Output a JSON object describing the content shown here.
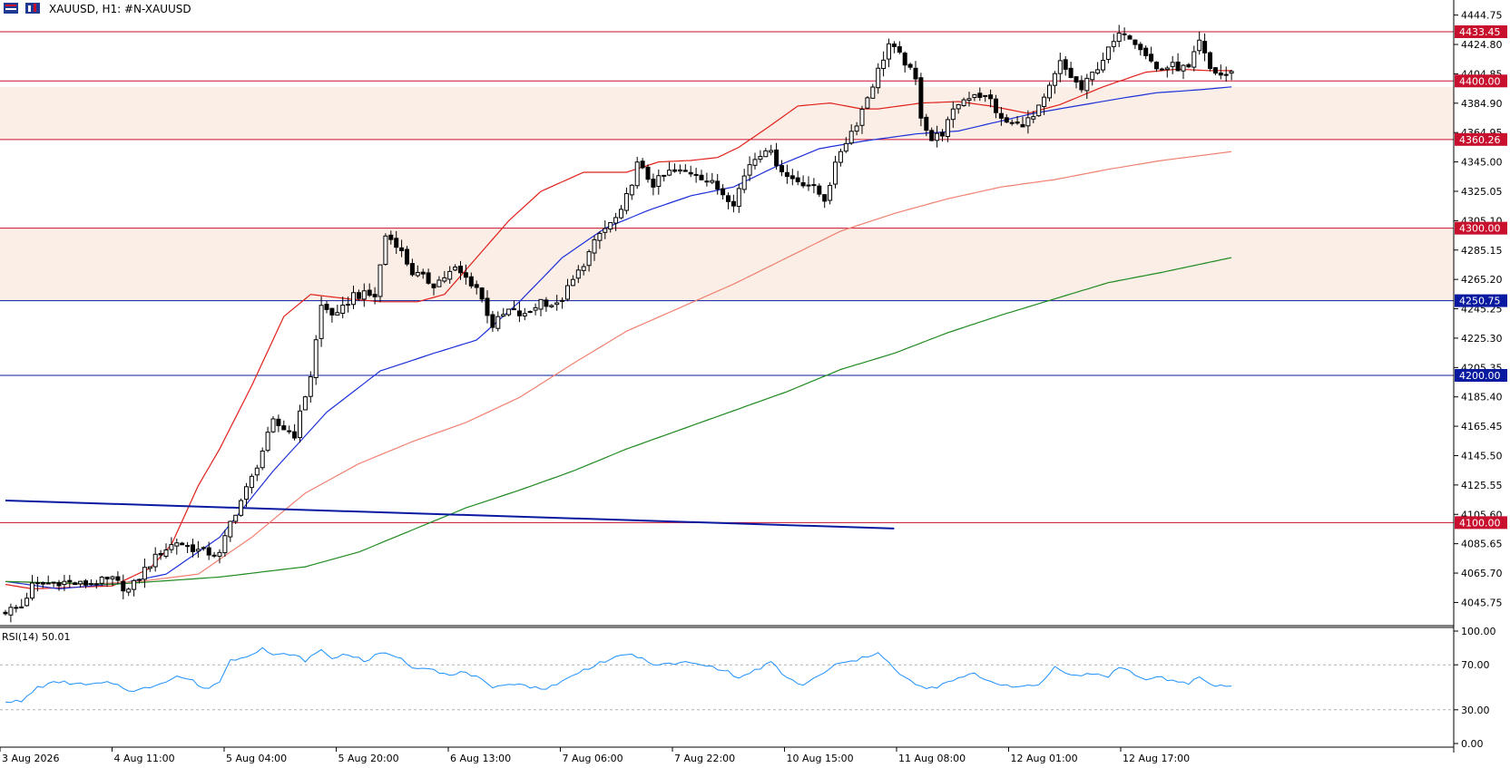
{
  "header": {
    "symbol_line": "XAUUSD, H1:  #N-XAUUSD"
  },
  "rsi_label": "RSI(14) 50.01",
  "chart_data": [
    {
      "type": "candlestick",
      "symbol": "XAUUSD",
      "timeframe": "H1",
      "ylim": [
        4030,
        4455
      ],
      "price_ticks": [
        "4444.75",
        "4424.80",
        "4404.85",
        "4384.90",
        "4364.95",
        "4345.00",
        "4325.05",
        "4305.10",
        "4285.15",
        "4265.20",
        "4245.25",
        "4225.30",
        "4205.35",
        "4185.40",
        "4165.45",
        "4145.50",
        "4125.55",
        "4105.60",
        "4085.65",
        "4065.70",
        "4045.75"
      ],
      "time_labels": [
        "3 Aug 2026",
        "4 Aug 11:00",
        "5 Aug 04:00",
        "5 Aug 20:00",
        "6 Aug 13:00",
        "7 Aug 06:00",
        "7 Aug 22:00",
        "10 Aug 15:00",
        "11 Aug 08:00",
        "12 Aug 01:00",
        "12 Aug 17:00"
      ],
      "levels": [
        {
          "label": "4433.45",
          "value": 4433.45,
          "color": "#c8102e"
        },
        {
          "label": "4400.00",
          "value": 4400.0,
          "color": "#c8102e"
        },
        {
          "label": "4360.26",
          "value": 4360.26,
          "color": "#c8102e"
        },
        {
          "label": "4300.00",
          "value": 4300.0,
          "color": "#c8102e"
        },
        {
          "label": "4250.75",
          "value": 4250.75,
          "color": "#0a1aa0"
        },
        {
          "label": "4200.00",
          "value": 4200.0,
          "color": "#0a1aa0"
        },
        {
          "label": "4100.00",
          "value": 4100.0,
          "color": "#c8102e"
        }
      ],
      "zones": [
        {
          "from": 4360.26,
          "to": 4396,
          "color": "#fbeee6"
        },
        {
          "from": 4250.75,
          "to": 4300.0,
          "color": "#fbeee6"
        }
      ],
      "trendline": {
        "from_bar": 0,
        "from_price": 4115,
        "to_bar": 166,
        "to_price": 4096,
        "color": "#0a1aa0"
      },
      "moving_averages": [
        {
          "color": "#e0201a",
          "anchors": [
            [
              0,
              4058
            ],
            [
              5,
              4055
            ],
            [
              20,
              4057
            ],
            [
              27,
              4069
            ],
            [
              31,
              4085
            ],
            [
              36,
              4125
            ],
            [
              40,
              4150
            ],
            [
              46,
              4193
            ],
            [
              52,
              4240
            ],
            [
              57,
              4255
            ],
            [
              64,
              4252
            ],
            [
              70,
              4250
            ],
            [
              77,
              4250
            ],
            [
              82,
              4255
            ],
            [
              88,
              4280
            ],
            [
              94,
              4305
            ],
            [
              100,
              4325
            ],
            [
              108,
              4338
            ],
            [
              116,
              4338
            ],
            [
              122,
              4345
            ],
            [
              128,
              4346
            ],
            [
              133,
              4348
            ],
            [
              137,
              4355
            ],
            [
              143,
              4370
            ],
            [
              148,
              4383
            ],
            [
              154,
              4385
            ],
            [
              160,
              4381
            ],
            [
              163,
              4381
            ],
            [
              171,
              4385
            ],
            [
              178,
              4386
            ],
            [
              184,
              4383
            ],
            [
              191,
              4378
            ],
            [
              197,
              4384
            ],
            [
              205,
              4396
            ],
            [
              213,
              4406
            ],
            [
              219,
              4408
            ],
            [
              225,
              4407
            ],
            [
              229,
              4407
            ]
          ]
        },
        {
          "color": "#1c2fd8",
          "anchors": [
            [
              0,
              4060
            ],
            [
              10,
              4055
            ],
            [
              22,
              4059
            ],
            [
              30,
              4065
            ],
            [
              40,
              4090
            ],
            [
              50,
              4135
            ],
            [
              60,
              4175
            ],
            [
              70,
              4203
            ],
            [
              80,
              4215
            ],
            [
              88,
              4224
            ],
            [
              96,
              4250
            ],
            [
              104,
              4280
            ],
            [
              112,
              4300
            ],
            [
              120,
              4312
            ],
            [
              128,
              4322
            ],
            [
              136,
              4328
            ],
            [
              144,
              4342
            ],
            [
              152,
              4354
            ],
            [
              160,
              4359
            ],
            [
              170,
              4364
            ],
            [
              178,
              4366
            ],
            [
              185,
              4372
            ],
            [
              192,
              4378
            ],
            [
              200,
              4383
            ],
            [
              208,
              4388
            ],
            [
              215,
              4392
            ],
            [
              223,
              4394
            ],
            [
              229,
              4396
            ]
          ]
        },
        {
          "color": "#f08070",
          "anchors": [
            [
              0,
              4060
            ],
            [
              15,
              4058
            ],
            [
              25,
              4060
            ],
            [
              36,
              4065
            ],
            [
              46,
              4090
            ],
            [
              56,
              4120
            ],
            [
              66,
              4140
            ],
            [
              76,
              4155
            ],
            [
              86,
              4168
            ],
            [
              96,
              4185
            ],
            [
              106,
              4208
            ],
            [
              116,
              4230
            ],
            [
              126,
              4246
            ],
            [
              136,
              4262
            ],
            [
              146,
              4280
            ],
            [
              156,
              4298
            ],
            [
              166,
              4310
            ],
            [
              176,
              4320
            ],
            [
              186,
              4328
            ],
            [
              196,
              4333
            ],
            [
              206,
              4340
            ],
            [
              216,
              4346
            ],
            [
              229,
              4352
            ]
          ]
        },
        {
          "color": "#1f8a1f",
          "anchors": [
            [
              0,
              4060
            ],
            [
              20,
              4058
            ],
            [
              40,
              4063
            ],
            [
              56,
              4070
            ],
            [
              66,
              4080
            ],
            [
              76,
              4095
            ],
            [
              86,
              4110
            ],
            [
              96,
              4122
            ],
            [
              106,
              4135
            ],
            [
              116,
              4150
            ],
            [
              126,
              4163
            ],
            [
              136,
              4176
            ],
            [
              146,
              4189
            ],
            [
              156,
              4204
            ],
            [
              166,
              4215
            ],
            [
              176,
              4229
            ],
            [
              186,
              4241
            ],
            [
              196,
              4252
            ],
            [
              206,
              4263
            ],
            [
              216,
              4270
            ],
            [
              229,
              4280
            ]
          ]
        }
      ],
      "candle_anchors": [
        [
          0,
          4040
        ],
        [
          3,
          4043
        ],
        [
          5,
          4057
        ],
        [
          10,
          4060
        ],
        [
          14,
          4058
        ],
        [
          20,
          4061
        ],
        [
          23,
          4054
        ],
        [
          24,
          4058
        ],
        [
          26,
          4068
        ],
        [
          29,
          4080
        ],
        [
          32,
          4087
        ],
        [
          36,
          4081
        ],
        [
          40,
          4078
        ],
        [
          42,
          4100
        ],
        [
          46,
          4130
        ],
        [
          50,
          4168
        ],
        [
          54,
          4160
        ],
        [
          57,
          4200
        ],
        [
          59,
          4247
        ],
        [
          62,
          4240
        ],
        [
          65,
          4255
        ],
        [
          69,
          4254
        ],
        [
          71,
          4295
        ],
        [
          73,
          4290
        ],
        [
          76,
          4270
        ],
        [
          80,
          4262
        ],
        [
          84,
          4272
        ],
        [
          88,
          4260
        ],
        [
          91,
          4234
        ],
        [
          94,
          4244
        ],
        [
          97,
          4240
        ],
        [
          100,
          4251
        ],
        [
          103,
          4247
        ],
        [
          107,
          4270
        ],
        [
          111,
          4296
        ],
        [
          115,
          4310
        ],
        [
          118,
          4343
        ],
        [
          121,
          4330
        ],
        [
          124,
          4338
        ],
        [
          129,
          4338
        ],
        [
          132,
          4330
        ],
        [
          136,
          4318
        ],
        [
          139,
          4344
        ],
        [
          142,
          4355
        ],
        [
          146,
          4335
        ],
        [
          150,
          4330
        ],
        [
          153,
          4320
        ],
        [
          156,
          4353
        ],
        [
          159,
          4372
        ],
        [
          162,
          4398
        ],
        [
          165,
          4425
        ],
        [
          168,
          4413
        ],
        [
          170,
          4400
        ],
        [
          171,
          4377
        ],
        [
          173,
          4360
        ],
        [
          175,
          4365
        ],
        [
          178,
          4385
        ],
        [
          181,
          4392
        ],
        [
          184,
          4387
        ],
        [
          186,
          4373
        ],
        [
          189,
          4370
        ],
        [
          192,
          4375
        ],
        [
          194,
          4387
        ],
        [
          197,
          4412
        ],
        [
          201,
          4394
        ],
        [
          204,
          4410
        ],
        [
          207,
          4426
        ],
        [
          209,
          4434
        ],
        [
          212,
          4424
        ],
        [
          215,
          4408
        ],
        [
          218,
          4410
        ],
        [
          221,
          4408
        ],
        [
          223,
          4426
        ],
        [
          225,
          4408
        ],
        [
          227,
          4404
        ],
        [
          229,
          4405
        ]
      ],
      "rsi": {
        "period": 14,
        "value": 50.01,
        "ylim": [
          0,
          100
        ],
        "ticks": [
          "100.00",
          "70.00",
          "30.00",
          "0.00"
        ],
        "levels": [
          70,
          30
        ],
        "anchors": [
          [
            0,
            38
          ],
          [
            3,
            37
          ],
          [
            6,
            50
          ],
          [
            10,
            55
          ],
          [
            15,
            52
          ],
          [
            20,
            54
          ],
          [
            24,
            46
          ],
          [
            28,
            52
          ],
          [
            32,
            60
          ],
          [
            35,
            56
          ],
          [
            37,
            48
          ],
          [
            40,
            55
          ],
          [
            42,
            74
          ],
          [
            45,
            78
          ],
          [
            48,
            85
          ],
          [
            50,
            78
          ],
          [
            53,
            80
          ],
          [
            56,
            74
          ],
          [
            59,
            83
          ],
          [
            61,
            76
          ],
          [
            64,
            80
          ],
          [
            67,
            73
          ],
          [
            70,
            80
          ],
          [
            73,
            78
          ],
          [
            76,
            68
          ],
          [
            79,
            68
          ],
          [
            83,
            60
          ],
          [
            86,
            64
          ],
          [
            89,
            56
          ],
          [
            91,
            48
          ],
          [
            94,
            54
          ],
          [
            97,
            52
          ],
          [
            100,
            48
          ],
          [
            104,
            55
          ],
          [
            107,
            63
          ],
          [
            111,
            72
          ],
          [
            114,
            76
          ],
          [
            117,
            80
          ],
          [
            120,
            72
          ],
          [
            123,
            70
          ],
          [
            127,
            72
          ],
          [
            130,
            70
          ],
          [
            134,
            66
          ],
          [
            137,
            58
          ],
          [
            140,
            65
          ],
          [
            143,
            72
          ],
          [
            146,
            58
          ],
          [
            149,
            52
          ],
          [
            152,
            60
          ],
          [
            155,
            70
          ],
          [
            158,
            73
          ],
          [
            161,
            77
          ],
          [
            163,
            82
          ],
          [
            165,
            72
          ],
          [
            167,
            61
          ],
          [
            170,
            53
          ],
          [
            172,
            48
          ],
          [
            175,
            52
          ],
          [
            178,
            58
          ],
          [
            181,
            62
          ],
          [
            184,
            55
          ],
          [
            187,
            52
          ],
          [
            190,
            50
          ],
          [
            193,
            52
          ],
          [
            196,
            68
          ],
          [
            198,
            64
          ],
          [
            200,
            60
          ],
          [
            203,
            62
          ],
          [
            206,
            60
          ],
          [
            208,
            68
          ],
          [
            210,
            64
          ],
          [
            213,
            56
          ],
          [
            215,
            60
          ],
          [
            218,
            56
          ],
          [
            221,
            52
          ],
          [
            223,
            60
          ],
          [
            225,
            52
          ],
          [
            229,
            51
          ]
        ]
      }
    }
  ]
}
